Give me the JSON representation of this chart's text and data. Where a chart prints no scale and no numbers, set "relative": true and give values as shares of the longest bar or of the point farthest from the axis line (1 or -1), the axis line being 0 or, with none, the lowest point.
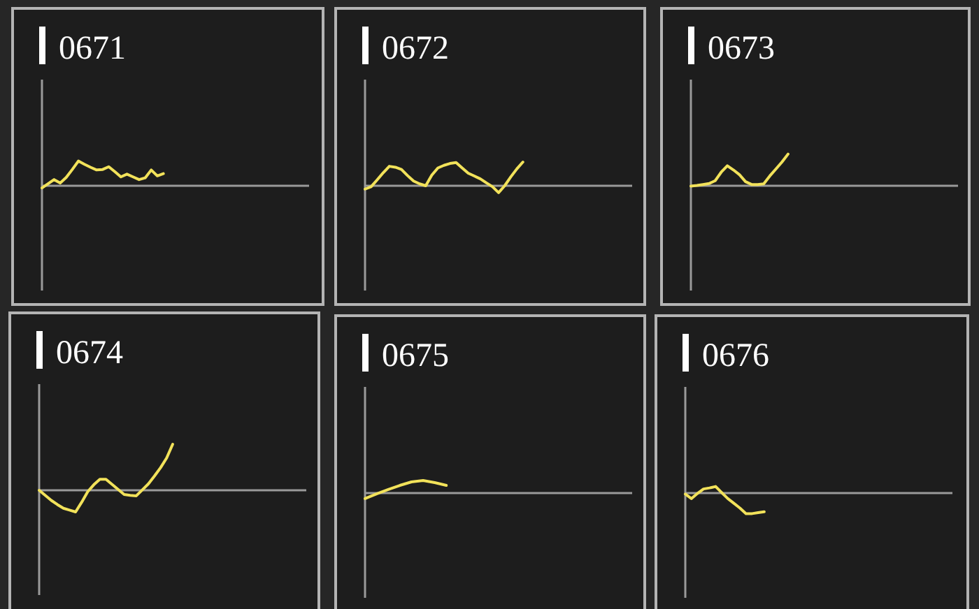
{
  "chart_data": [
    {
      "type": "line",
      "title": "0671",
      "relative": true,
      "color": "#f2e25a",
      "categories": [
        null,
        null,
        null,
        null,
        null,
        null,
        null,
        null,
        null,
        null,
        null,
        null,
        null,
        null,
        null,
        null,
        null,
        null,
        null,
        null,
        null,
        null,
        null,
        null,
        null,
        null,
        null,
        null,
        null,
        null,
        null,
        null,
        null,
        null,
        null,
        null,
        null,
        null,
        null,
        null,
        null,
        null,
        null,
        null,
        null
      ],
      "values": [
        -0.09,
        0.08,
        0.25,
        0.11,
        0.34,
        0.66,
        1,
        0.87,
        0.75,
        0.64,
        0.66,
        0.77,
        0.57,
        0.36,
        0.47,
        0.36,
        0.25,
        0.32,
        0.64,
        0.4,
        0.49,
        null,
        null,
        null,
        null,
        null,
        null,
        null,
        null,
        null,
        null,
        null,
        null,
        null,
        null,
        null,
        null,
        null,
        null,
        null,
        null,
        null,
        null,
        null,
        null
      ]
    },
    {
      "type": "line",
      "title": "0672",
      "relative": true,
      "color": "#f2e25a",
      "categories": [
        null,
        null,
        null,
        null,
        null,
        null,
        null,
        null,
        null,
        null,
        null,
        null,
        null,
        null,
        null,
        null,
        null,
        null,
        null,
        null,
        null,
        null,
        null,
        null,
        null,
        null,
        null,
        null,
        null,
        null,
        null,
        null,
        null,
        null,
        null,
        null,
        null,
        null,
        null,
        null,
        null,
        null,
        null,
        null,
        null
      ],
      "values": [
        -0.14,
        -0.04,
        0.25,
        0.55,
        0.82,
        0.78,
        0.69,
        0.43,
        0.2,
        0.08,
        0,
        0.45,
        0.75,
        0.86,
        0.94,
        0.98,
        0.75,
        0.53,
        0.41,
        0.29,
        0.12,
        -0.04,
        -0.29,
        0,
        0.37,
        0.71,
        1,
        null,
        null,
        null,
        null,
        null,
        null,
        null,
        null,
        null,
        null,
        null,
        null,
        null,
        null,
        null,
        null,
        null,
        null
      ]
    },
    {
      "type": "line",
      "title": "0673",
      "relative": true,
      "color": "#f2e25a",
      "categories": [
        null,
        null,
        null,
        null,
        null,
        null,
        null,
        null,
        null,
        null,
        null,
        null,
        null,
        null,
        null,
        null,
        null,
        null,
        null,
        null,
        null,
        null,
        null,
        null,
        null,
        null,
        null,
        null,
        null,
        null,
        null,
        null,
        null,
        null,
        null,
        null,
        null,
        null,
        null,
        null,
        null,
        null,
        null,
        null,
        null
      ],
      "values": [
        -0.01,
        0.01,
        0.04,
        0.07,
        0.16,
        0.43,
        0.63,
        0.5,
        0.35,
        0.13,
        0.04,
        0.04,
        0.06,
        0.31,
        0.53,
        0.75,
        1,
        null,
        null,
        null,
        null,
        null,
        null,
        null,
        null,
        null,
        null,
        null,
        null,
        null,
        null,
        null,
        null,
        null,
        null,
        null,
        null,
        null,
        null,
        null,
        null,
        null,
        null,
        null,
        null
      ]
    },
    {
      "type": "line",
      "title": "0674",
      "relative": true,
      "color": "#f2e25a",
      "categories": [
        null,
        null,
        null,
        null,
        null,
        null,
        null,
        null,
        null,
        null,
        null,
        null,
        null,
        null,
        null,
        null,
        null,
        null,
        null,
        null,
        null,
        null,
        null,
        null,
        null,
        null,
        null,
        null,
        null,
        null,
        null,
        null,
        null,
        null,
        null,
        null,
        null,
        null,
        null,
        null,
        null,
        null,
        null,
        null,
        null
      ],
      "values": [
        0,
        -0.11,
        -0.22,
        -0.31,
        -0.39,
        -0.43,
        -0.47,
        -0.26,
        -0.03,
        0.12,
        0.24,
        0.24,
        0.13,
        0.02,
        -0.09,
        -0.11,
        -0.12,
        0.01,
        0.14,
        0.31,
        0.49,
        0.7,
        1,
        null,
        null,
        null,
        null,
        null,
        null,
        null,
        null,
        null,
        null,
        null,
        null,
        null,
        null,
        null,
        null,
        null,
        null,
        null,
        null,
        null,
        null
      ]
    },
    {
      "type": "line",
      "title": "0675",
      "relative": true,
      "color": "#f2e25a",
      "categories": [
        null,
        null,
        null,
        null,
        null,
        null,
        null,
        null,
        null,
        null,
        null,
        null,
        null,
        null,
        null,
        null,
        null,
        null,
        null,
        null,
        null,
        null,
        null,
        null
      ],
      "values": [
        -0.44,
        -0.06,
        0.28,
        0.61,
        0.89,
        1,
        0.83,
        0.61,
        null,
        null,
        null,
        null,
        null,
        null,
        null,
        null,
        null,
        null,
        null,
        null,
        null,
        null,
        null,
        null
      ]
    },
    {
      "type": "line",
      "title": "0676",
      "relative": true,
      "color": "#f2e25a",
      "categories": [
        null,
        null,
        null,
        null,
        null,
        null,
        null,
        null,
        null,
        null,
        null,
        null,
        null,
        null,
        null,
        null,
        null,
        null,
        null,
        null,
        null,
        null,
        null,
        null,
        null,
        null,
        null,
        null,
        null,
        null,
        null,
        null,
        null,
        null,
        null,
        null,
        null,
        null,
        null,
        null,
        null,
        null,
        null,
        null,
        null
      ],
      "values": [
        -0.05,
        -0.27,
        -0.02,
        0.2,
        0.25,
        0.32,
        0.02,
        -0.27,
        -0.5,
        -0.73,
        -1,
        -1,
        -0.95,
        -0.91,
        null,
        null,
        null,
        null,
        null,
        null,
        null,
        null,
        null,
        null,
        null,
        null,
        null,
        null,
        null,
        null,
        null,
        null,
        null,
        null,
        null,
        null,
        null,
        null,
        null,
        null,
        null,
        null,
        null,
        null,
        null
      ]
    }
  ]
}
